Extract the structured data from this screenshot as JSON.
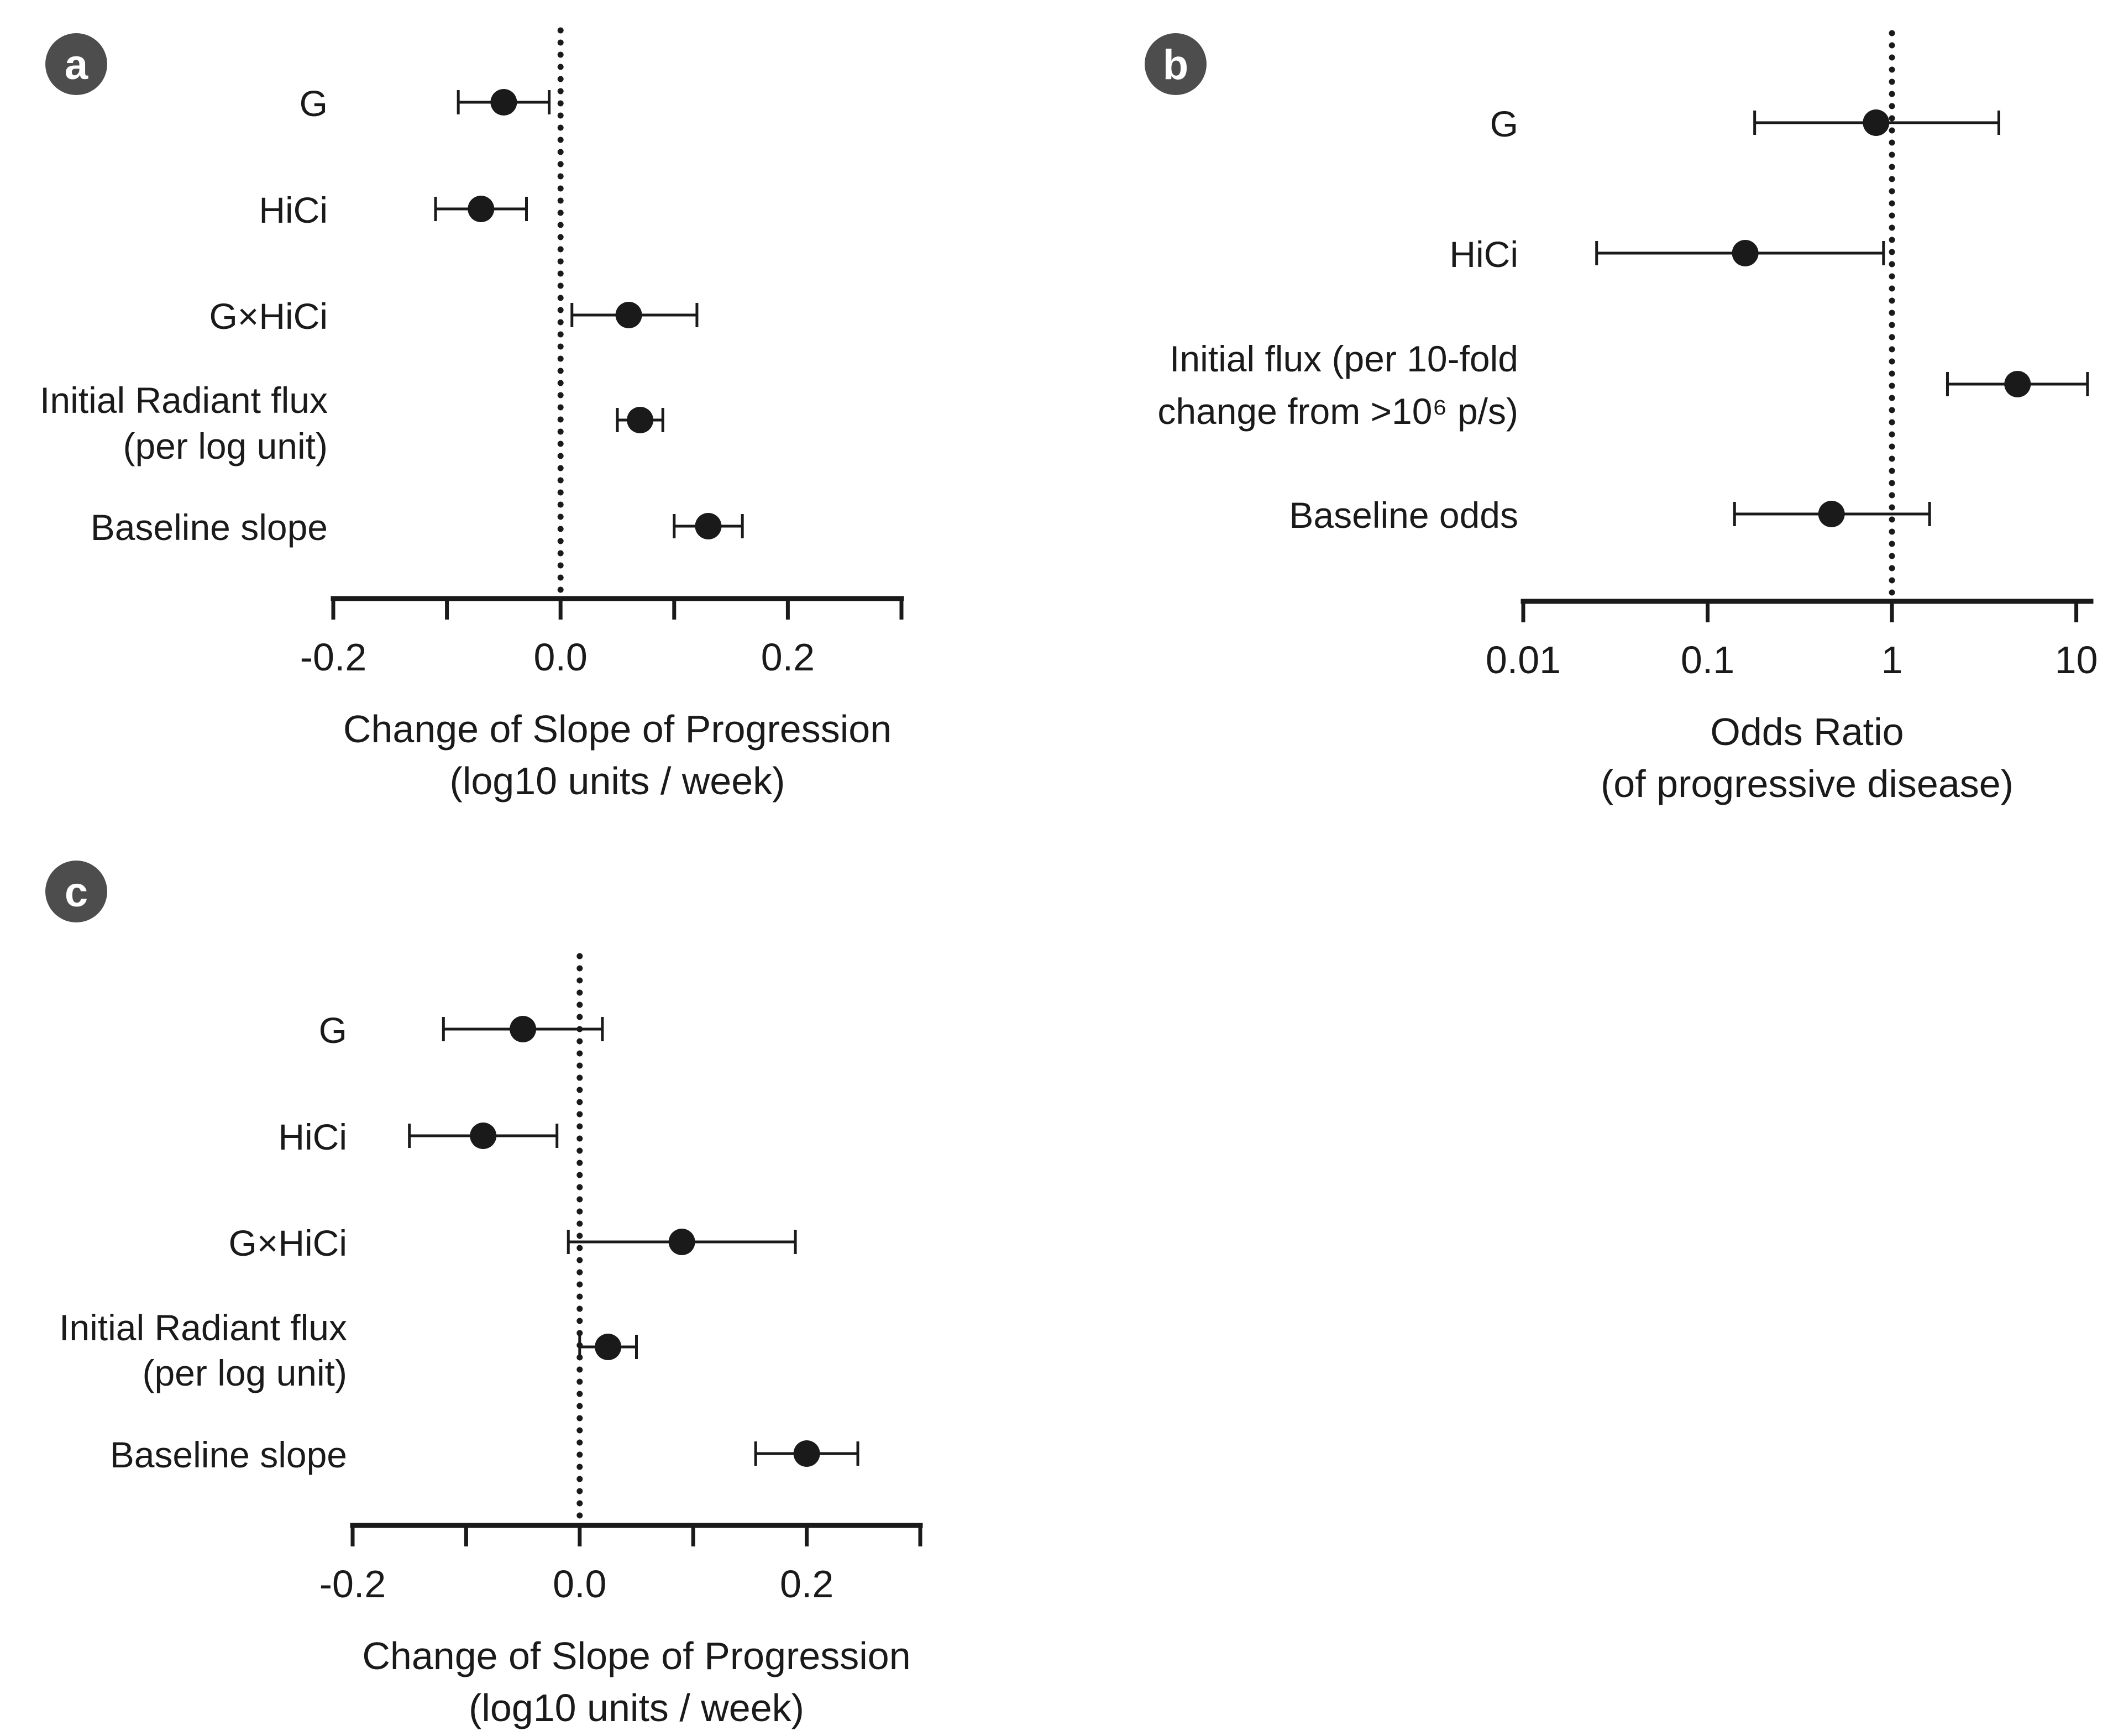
{
  "colors": {
    "ink": "#1a1a1a",
    "badge": "#4d4d4d",
    "badge_text": "#ffffff"
  },
  "chart_data": [
    {
      "panel": "a",
      "type": "forest",
      "scale": "linear",
      "xlabel": [
        "Change of Slope of Progression",
        "(log10 units / week)"
      ],
      "xlim": [
        -0.2,
        0.3
      ],
      "ticks": [
        -0.2,
        -0.1,
        0.0,
        0.1,
        0.2,
        0.3
      ],
      "tick_labels": [
        {
          "value": -0.2,
          "label": "-0.2"
        },
        {
          "value": 0.0,
          "label": "0.0"
        },
        {
          "value": 0.2,
          "label": "0.2"
        }
      ],
      "reference_line": 0.0,
      "rows": [
        {
          "label": [
            "G"
          ],
          "estimate": -0.05,
          "lower": -0.09,
          "upper": -0.01
        },
        {
          "label": [
            "HiCi"
          ],
          "estimate": -0.07,
          "lower": -0.11,
          "upper": -0.03
        },
        {
          "label": [
            "G×HiCi"
          ],
          "estimate": 0.06,
          "lower": 0.01,
          "upper": 0.12
        },
        {
          "label": [
            "Initial Radiant flux",
            "(per log unit)"
          ],
          "estimate": 0.07,
          "lower": 0.05,
          "upper": 0.09
        },
        {
          "label": [
            "Baseline slope"
          ],
          "estimate": 0.13,
          "lower": 0.1,
          "upper": 0.16
        }
      ]
    },
    {
      "panel": "b",
      "type": "forest",
      "scale": "log",
      "xlabel": [
        "Odds Ratio",
        "(of progressive disease)"
      ],
      "xlim": [
        0.01,
        12
      ],
      "ticks": [
        0.01,
        0.1,
        1,
        10
      ],
      "tick_labels": [
        {
          "value": 0.01,
          "label": "0.01"
        },
        {
          "value": 0.1,
          "label": "0.1"
        },
        {
          "value": 1,
          "label": "1"
        },
        {
          "value": 10,
          "label": "10"
        }
      ],
      "reference_line": 1,
      "rows": [
        {
          "label": [
            "G"
          ],
          "estimate": 0.82,
          "lower": 0.18,
          "upper": 3.8
        },
        {
          "label": [
            "HiCi"
          ],
          "estimate": 0.16,
          "lower": 0.025,
          "upper": 0.9
        },
        {
          "label": [
            "Initial flux (per 10-fold",
            "change from >10⁶ p/s)"
          ],
          "estimate": 4.8,
          "lower": 2.0,
          "upper": 11.5
        },
        {
          "label": [
            "Baseline odds"
          ],
          "estimate": 0.47,
          "lower": 0.14,
          "upper": 1.6
        }
      ]
    },
    {
      "panel": "c",
      "type": "forest",
      "scale": "linear",
      "xlabel": [
        "Change of Slope of Progression",
        "(log10 units / week)"
      ],
      "xlim": [
        -0.2,
        0.3
      ],
      "ticks": [
        -0.2,
        -0.1,
        0.0,
        0.1,
        0.2,
        0.3
      ],
      "tick_labels": [
        {
          "value": -0.2,
          "label": "-0.2"
        },
        {
          "value": 0.0,
          "label": "0.0"
        },
        {
          "value": 0.2,
          "label": "0.2"
        }
      ],
      "reference_line": 0.0,
      "rows": [
        {
          "label": [
            "G"
          ],
          "estimate": -0.05,
          "lower": -0.12,
          "upper": 0.02
        },
        {
          "label": [
            "HiCi"
          ],
          "estimate": -0.085,
          "lower": -0.15,
          "upper": -0.02
        },
        {
          "label": [
            "G×HiCi"
          ],
          "estimate": 0.09,
          "lower": -0.01,
          "upper": 0.19
        },
        {
          "label": [
            "Initial Radiant flux",
            "(per log unit)"
          ],
          "estimate": 0.025,
          "lower": 0.0,
          "upper": 0.05
        },
        {
          "label": [
            "Baseline slope"
          ],
          "estimate": 0.2,
          "lower": 0.155,
          "upper": 0.245
        }
      ]
    }
  ]
}
